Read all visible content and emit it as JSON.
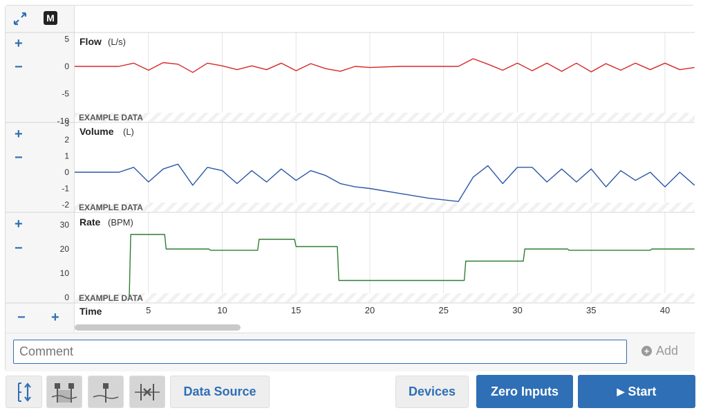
{
  "toolbar_top": {
    "expand_icon": "expand-arrows-icon",
    "mode_badge": "M"
  },
  "channels": [
    {
      "name": "Flow",
      "unit": "(L/s)",
      "ticks": [
        "5",
        "0",
        "-5",
        "-10"
      ],
      "watermark": "EXAMPLE DATA",
      "color": "#d62728"
    },
    {
      "name": "Volume",
      "unit": "(L)",
      "ticks": [
        "3",
        "2",
        "1",
        "0",
        "-1",
        "-2"
      ],
      "watermark": "EXAMPLE DATA",
      "color": "#2a56a8"
    },
    {
      "name": "Rate",
      "unit": "(BPM)",
      "ticks": [
        "30",
        "20",
        "10",
        "0"
      ],
      "watermark": "EXAMPLE DATA",
      "color": "#2e7d32"
    }
  ],
  "zoom": {
    "plus": "+",
    "minus": "−"
  },
  "time_axis": {
    "label": "Time",
    "ticks": [
      "5",
      "10",
      "15",
      "20",
      "25",
      "30",
      "35",
      "40"
    ]
  },
  "comment": {
    "placeholder": "Comment",
    "value": ""
  },
  "add_label": "Add",
  "buttons": {
    "data_source": "Data Source",
    "devices": "Devices",
    "zero_inputs": "Zero Inputs",
    "start": "Start"
  },
  "chart_data": [
    {
      "type": "line",
      "ylabel": "Flow (L/s)",
      "ylim": [
        -10,
        5
      ],
      "xlim": [
        0,
        42
      ],
      "x": [
        0,
        3,
        4,
        5,
        6,
        7,
        8,
        9,
        10,
        11,
        12,
        13,
        14,
        15,
        16,
        17,
        18,
        19,
        20,
        22,
        24,
        26,
        27,
        28,
        29,
        30,
        31,
        32,
        33,
        34,
        35,
        36,
        37,
        38,
        39,
        40,
        41,
        42
      ],
      "values": [
        0,
        0,
        0.6,
        -0.7,
        0.7,
        0.4,
        -1.1,
        0.6,
        0.1,
        -0.6,
        0.1,
        -0.6,
        0.6,
        -0.8,
        0.5,
        -0.4,
        -0.9,
        0,
        -0.2,
        0,
        0,
        0,
        1.4,
        0.4,
        -0.7,
        0.6,
        -0.8,
        0.6,
        -0.9,
        0.6,
        -1.0,
        0.5,
        -0.7,
        0.6,
        -0.6,
        0.6,
        -0.6,
        -0.2
      ]
    },
    {
      "type": "line",
      "ylabel": "Volume (L)",
      "ylim": [
        -2,
        3
      ],
      "xlim": [
        0,
        42
      ],
      "x": [
        0,
        3,
        4,
        5,
        6,
        7,
        8,
        9,
        10,
        11,
        12,
        13,
        14,
        15,
        16,
        17,
        18,
        19,
        20,
        22,
        24,
        26,
        27,
        28,
        29,
        30,
        31,
        32,
        33,
        34,
        35,
        36,
        37,
        38,
        39,
        40,
        41,
        42
      ],
      "values": [
        0,
        0,
        0.3,
        -0.6,
        0.2,
        0.5,
        -0.8,
        0.3,
        0.1,
        -0.7,
        0.1,
        -0.6,
        0.2,
        -0.5,
        0.1,
        -0.2,
        -0.7,
        -0.9,
        -1.0,
        -1.3,
        -1.6,
        -1.8,
        -0.3,
        0.4,
        -0.7,
        0.3,
        0.3,
        -0.6,
        0.2,
        -0.6,
        0.2,
        -0.9,
        0.1,
        -0.5,
        0,
        -0.9,
        0,
        -0.8
      ]
    },
    {
      "type": "line",
      "ylabel": "Rate (BPM)",
      "ylim": [
        0,
        30
      ],
      "xlim": [
        0,
        42
      ],
      "x": [
        3.7,
        3.8,
        6.1,
        6.2,
        9.1,
        9.2,
        12.4,
        12.5,
        14.9,
        15.0,
        17.8,
        17.9,
        26.4,
        26.5,
        30.4,
        30.5,
        33.4,
        33.5,
        39.0,
        39.1,
        42
      ],
      "values": [
        0,
        26,
        26,
        20,
        20,
        19.5,
        19.5,
        24,
        24,
        21,
        21,
        7,
        7,
        15,
        15,
        20,
        20,
        19.5,
        19.5,
        20,
        20
      ]
    }
  ]
}
